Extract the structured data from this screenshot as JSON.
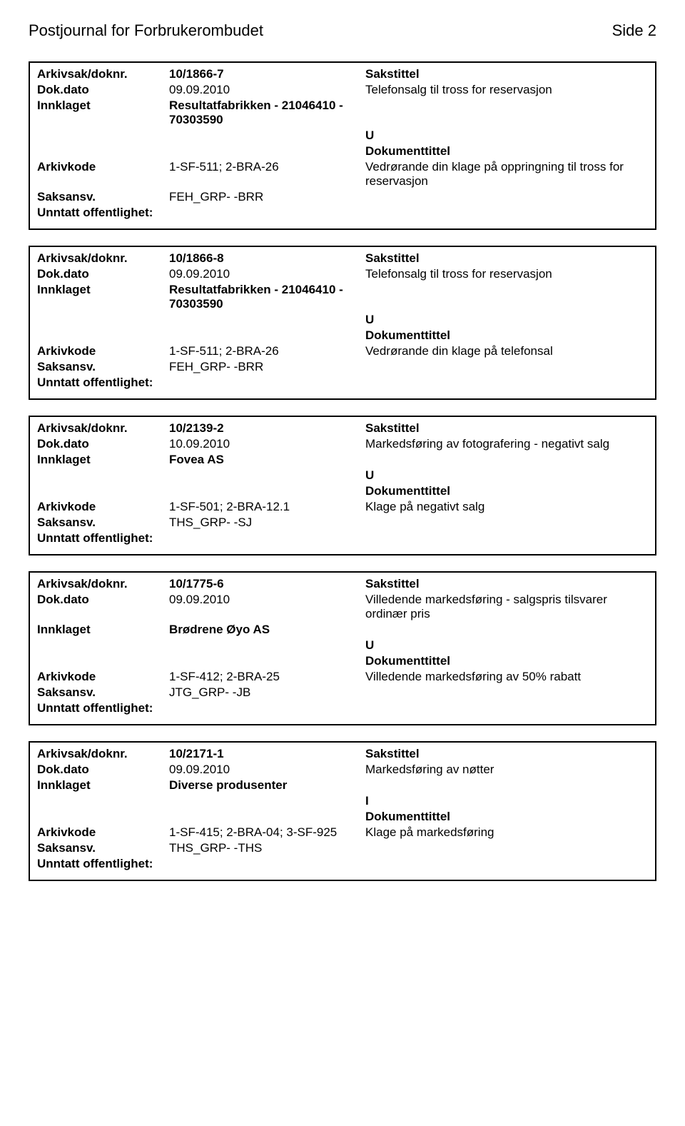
{
  "page": {
    "title": "Postjournal for Forbrukerombudet",
    "side_label": "Side",
    "side_number": "2"
  },
  "labels": {
    "arkivsak": "Arkivsak/doknr.",
    "dokdato": "Dok.dato",
    "innklaget": "Innklaget",
    "arkivkode": "Arkivkode",
    "saksansv": "Saksansv.",
    "unntatt": "Unntatt offentlighet:",
    "sakstittel": "Sakstittel",
    "dokumenttittel": "Dokumenttittel"
  },
  "entries": [
    {
      "doknr": "10/1866-7",
      "dato": "09.09.2010",
      "sakstittel": "Telefonsalg til tross for reservasjon",
      "innklaget": "Resultatfabrikken - 21046410 - 70303590",
      "letter": "U",
      "arkivkode": "1-SF-511; 2-BRA-26",
      "doktekst": "Vedrørande din klage på oppringning til tross for reservasjon",
      "saksansv": "FEH_GRP- -BRR"
    },
    {
      "doknr": "10/1866-8",
      "dato": "09.09.2010",
      "sakstittel": "Telefonsalg til tross for reservasjon",
      "innklaget": "Resultatfabrikken - 21046410 - 70303590",
      "letter": "U",
      "arkivkode": "1-SF-511; 2-BRA-26",
      "doktekst": "Vedrørande din klage på telefonsal",
      "saksansv": "FEH_GRP- -BRR"
    },
    {
      "doknr": "10/2139-2",
      "dato": "10.09.2010",
      "sakstittel": "Markedsføring av fotografering - negativt salg",
      "innklaget": "Fovea AS",
      "letter": "U",
      "arkivkode": "1-SF-501; 2-BRA-12.1",
      "doktekst": "Klage på negativt salg",
      "saksansv": "THS_GRP- -SJ"
    },
    {
      "doknr": "10/1775-6",
      "dato": "09.09.2010",
      "sakstittel": "Villedende markedsføring - salgspris tilsvarer ordinær pris",
      "innklaget": "Brødrene Øyo AS",
      "letter": "U",
      "arkivkode": "1-SF-412; 2-BRA-25",
      "doktekst": "Villedende markedsføring av  50% rabatt",
      "saksansv": "JTG_GRP- -JB"
    },
    {
      "doknr": "10/2171-1",
      "dato": "09.09.2010",
      "sakstittel": "Markedsføring av nøtter",
      "innklaget": "Diverse produsenter",
      "letter": "I",
      "arkivkode": "1-SF-415; 2-BRA-04; 3-SF-925",
      "doktekst": "Klage på markedsføring",
      "saksansv": "THS_GRP- -THS"
    }
  ]
}
